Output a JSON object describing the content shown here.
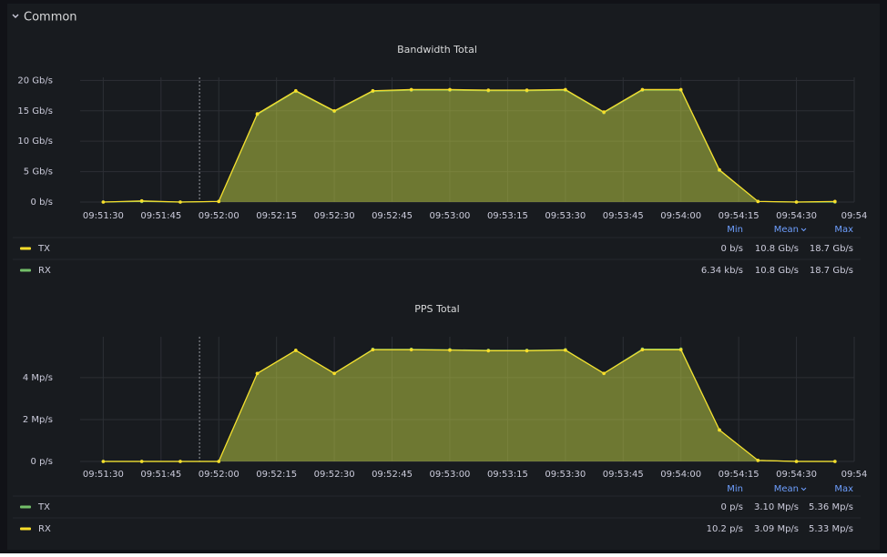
{
  "section": "Common",
  "chart_data": [
    {
      "type": "line",
      "title": "Bandwidth Total",
      "x": [
        "09:51:30",
        "09:51:40",
        "09:51:50",
        "09:52:00",
        "09:52:10",
        "09:52:20",
        "09:52:30",
        "09:52:40",
        "09:52:50",
        "09:53:00",
        "09:53:10",
        "09:53:20",
        "09:53:30",
        "09:53:40",
        "09:53:50",
        "09:54:00",
        "09:54:10",
        "09:54:20",
        "09:54:30",
        "09:54:40"
      ],
      "xlim": [
        "09:51:24",
        "09:54:45"
      ],
      "xticks": [
        "09:51:30",
        "09:51:45",
        "09:52:00",
        "09:52:15",
        "09:52:30",
        "09:52:45",
        "09:53:00",
        "09:53:15",
        "09:53:30",
        "09:53:45",
        "09:54:00",
        "09:54:15",
        "09:54:30",
        {
          "value": "09:54:45",
          "label": "09:54"
        }
      ],
      "ylim": [
        0,
        20.5
      ],
      "yticks": [
        {
          "value": 0,
          "label": "0 b/s"
        },
        {
          "value": 5,
          "label": "5 Gb/s"
        },
        {
          "value": 10,
          "label": "10 Gb/s"
        },
        {
          "value": 15,
          "label": "15 Gb/s"
        },
        {
          "value": 20,
          "label": "20 Gb/s"
        }
      ],
      "grid": true,
      "markers": [
        "09:51:55"
      ],
      "legend_columns": [
        "Min",
        "Mean",
        "Max"
      ],
      "series": [
        {
          "name": "TX",
          "color": "#fade2a",
          "values": [
            0,
            0.2,
            0,
            0.1,
            14.5,
            18.3,
            15,
            18.3,
            18.5,
            18.5,
            18.4,
            18.4,
            18.5,
            14.8,
            18.5,
            18.5,
            5.3,
            0.1,
            0,
            0.1
          ],
          "stats": [
            "0 b/s",
            "10.8 Gb/s",
            "18.7 Gb/s"
          ]
        },
        {
          "name": "RX",
          "color": "#73bf69",
          "values": [
            0,
            0.1,
            0,
            0.1,
            14.4,
            18.2,
            14.9,
            18.2,
            18.4,
            18.4,
            18.3,
            18.3,
            18.4,
            14.7,
            18.4,
            18.4,
            5.2,
            0.1,
            0,
            0
          ],
          "stats": [
            "6.34 kb/s",
            "10.8 Gb/s",
            "18.7 Gb/s"
          ]
        }
      ]
    },
    {
      "type": "line",
      "title": "PPS Total",
      "x": [
        "09:51:30",
        "09:51:40",
        "09:51:50",
        "09:52:00",
        "09:52:10",
        "09:52:20",
        "09:52:30",
        "09:52:40",
        "09:52:50",
        "09:53:00",
        "09:53:10",
        "09:53:20",
        "09:53:30",
        "09:53:40",
        "09:53:50",
        "09:54:00",
        "09:54:10",
        "09:54:20",
        "09:54:30",
        "09:54:40"
      ],
      "xlim": [
        "09:51:24",
        "09:54:45"
      ],
      "xticks": [
        "09:51:30",
        "09:51:45",
        "09:52:00",
        "09:52:15",
        "09:52:30",
        "09:52:45",
        "09:53:00",
        "09:53:15",
        "09:53:30",
        "09:53:45",
        "09:54:00",
        "09:54:15",
        "09:54:30",
        {
          "value": "09:54:45",
          "label": "09:54"
        }
      ],
      "ylim": [
        0,
        5.95
      ],
      "yticks": [
        {
          "value": 0,
          "label": "0 p/s"
        },
        {
          "value": 2,
          "label": "2 Mp/s"
        },
        {
          "value": 4,
          "label": "4 Mp/s"
        }
      ],
      "grid": true,
      "markers": [
        "09:51:55"
      ],
      "legend_columns": [
        "Min",
        "Mean",
        "Max"
      ],
      "series": [
        {
          "name": "TX",
          "color": "#73bf69",
          "values": [
            0,
            0,
            0,
            0,
            4.2,
            5.3,
            4.2,
            5.35,
            5.35,
            5.33,
            5.3,
            5.3,
            5.33,
            4.2,
            5.36,
            5.36,
            1.5,
            0.05,
            0,
            0
          ],
          "stats": [
            "0 p/s",
            "3.10 Mp/s",
            "5.36 Mp/s"
          ]
        },
        {
          "name": "RX",
          "color": "#fade2a",
          "values": [
            0,
            0,
            0,
            0,
            4.2,
            5.3,
            4.2,
            5.33,
            5.33,
            5.31,
            5.28,
            5.28,
            5.31,
            4.2,
            5.33,
            5.33,
            1.5,
            0.05,
            0,
            0
          ],
          "stats": [
            "10.2 p/s",
            "3.09 Mp/s",
            "5.33 Mp/s"
          ]
        }
      ]
    }
  ]
}
